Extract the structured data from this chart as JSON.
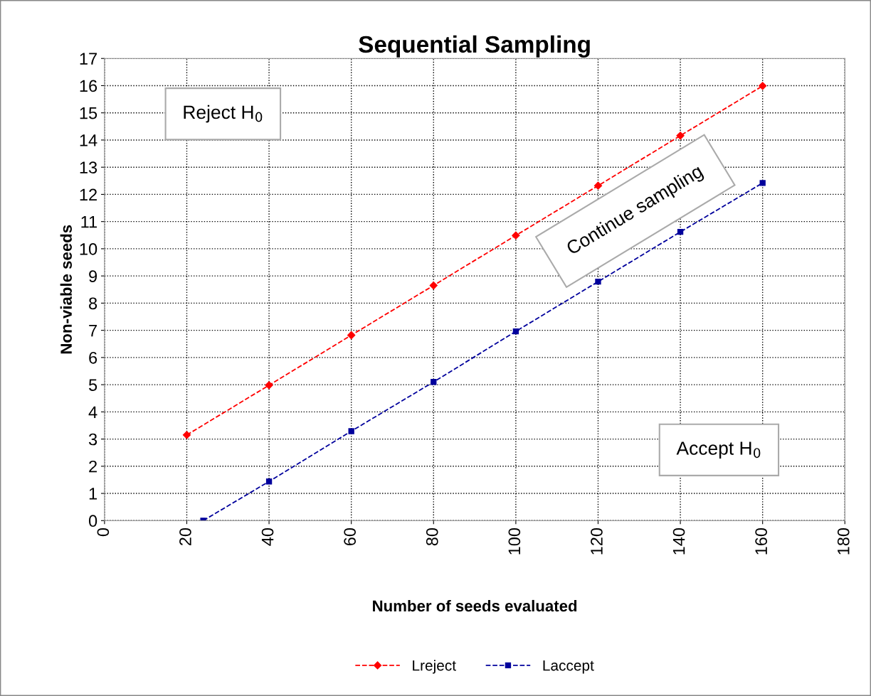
{
  "chart_data": {
    "type": "line",
    "title": "Sequential Sampling",
    "xlabel": "Number of seeds evaluated",
    "ylabel": "Non-viable seeds",
    "x": [
      20,
      40,
      60,
      80,
      100,
      120,
      140,
      160
    ],
    "series": [
      {
        "name": "Lreject",
        "color": "#ff0000",
        "marker": "diamond",
        "values": [
          3.15,
          4.98,
          6.82,
          8.65,
          10.49,
          12.32,
          14.16,
          15.99
        ]
      },
      {
        "name": "Laccept",
        "color": "#00009c",
        "marker": "square",
        "x": [
          24,
          40,
          60,
          80,
          100,
          120,
          140,
          160
        ],
        "values": [
          0,
          1.44,
          3.29,
          5.1,
          6.96,
          8.79,
          10.62,
          12.42
        ]
      }
    ],
    "xlim": [
      0,
      180
    ],
    "xticks": [
      0,
      20,
      40,
      60,
      80,
      100,
      120,
      140,
      160,
      180
    ],
    "ylim": [
      0,
      17
    ],
    "yticks": [
      0,
      1,
      2,
      3,
      4,
      5,
      6,
      7,
      8,
      9,
      10,
      11,
      12,
      13,
      14,
      15,
      16,
      17
    ],
    "grid": true,
    "legend": "bottom",
    "line_style": "dashed",
    "annotations": [
      "Reject H$_{0}$",
      "Continue sampling",
      "Accept H$_{0}$"
    ]
  }
}
